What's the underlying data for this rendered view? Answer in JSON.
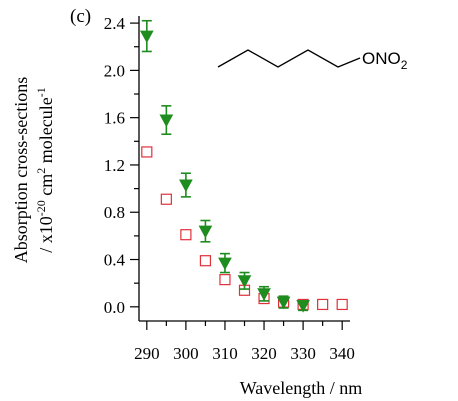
{
  "chart_data": {
    "type": "scatter",
    "panel_label": "(c)",
    "xlabel": "Wavelength / nm",
    "ylabel": {
      "line1": "Absorption cross-sections",
      "line2_prefix": "/ x10",
      "line2_exp": "-20",
      "line2_mid": " cm",
      "line2_exp2": "2",
      "line2_suffix": " molecule",
      "line2_exp3": "-1"
    },
    "xlim": [
      288,
      342
    ],
    "ylim": [
      -0.12,
      2.46
    ],
    "xticks": [
      290,
      300,
      310,
      320,
      330,
      340
    ],
    "yticks": [
      0.0,
      0.4,
      0.8,
      1.2,
      1.6,
      2.0,
      2.4
    ],
    "grid": false,
    "annotation": {
      "formula_main": "ONO",
      "formula_sub": "2"
    },
    "series": [
      {
        "marker": "open-square",
        "color": "#e0303a",
        "x": [
          290,
          295,
          300,
          305,
          310,
          315,
          320,
          325,
          330,
          335,
          340
        ],
        "y": [
          1.31,
          0.91,
          0.61,
          0.39,
          0.23,
          0.14,
          0.07,
          0.04,
          0.02,
          0.02,
          0.02
        ]
      },
      {
        "marker": "filled-triangle-down",
        "color": "#1e8c1e",
        "x": [
          290,
          295,
          300,
          305,
          310,
          315,
          320,
          325,
          330
        ],
        "y": [
          2.29,
          1.58,
          1.03,
          0.64,
          0.37,
          0.22,
          0.11,
          0.04,
          0.01
        ],
        "err": [
          0.13,
          0.12,
          0.1,
          0.09,
          0.08,
          0.07,
          0.06,
          0.05,
          0.04
        ]
      }
    ]
  }
}
